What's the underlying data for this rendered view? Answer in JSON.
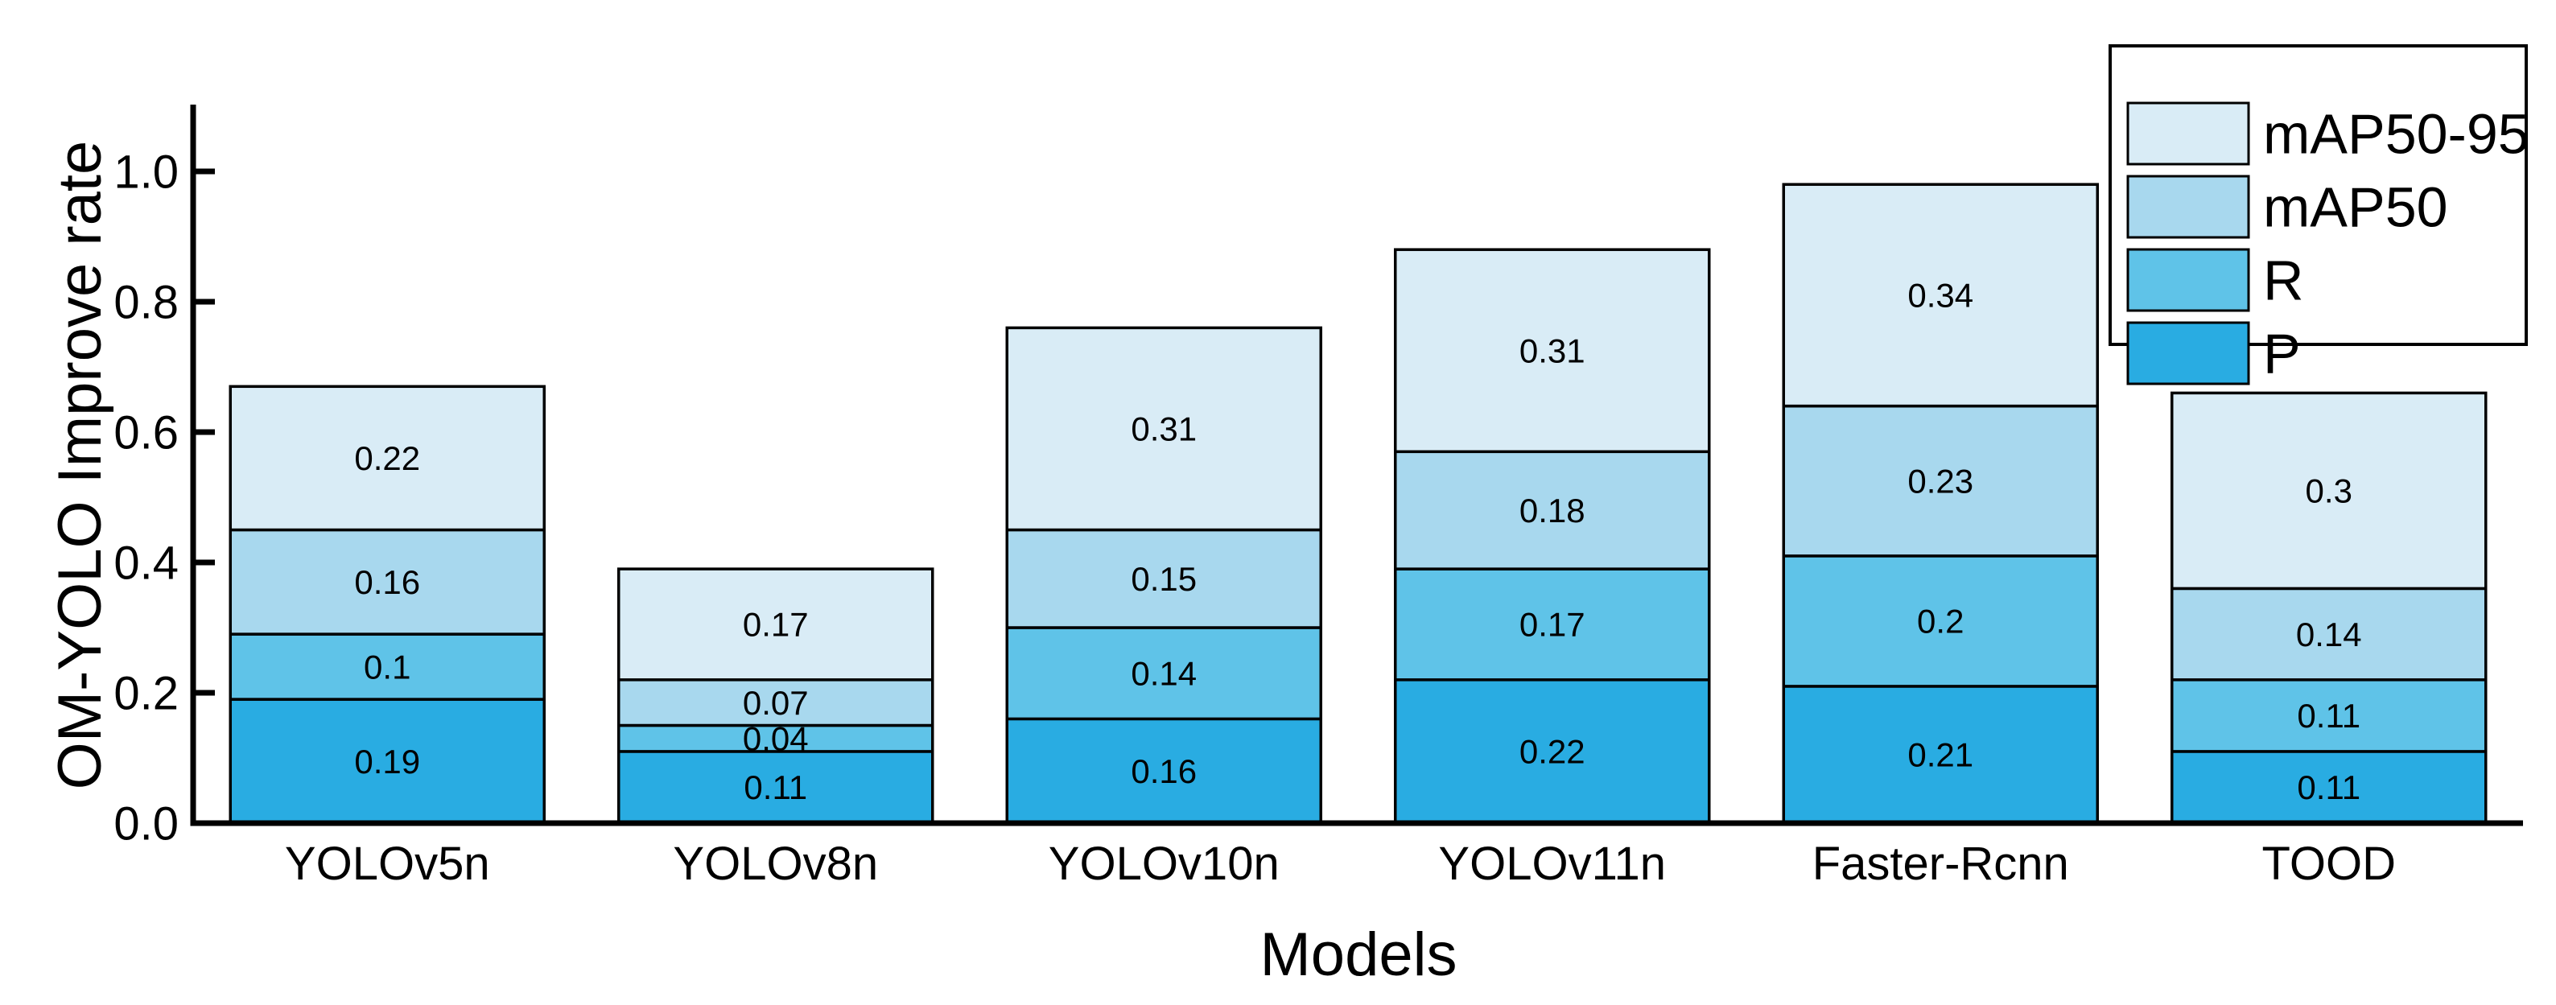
{
  "chart_data": {
    "type": "bar",
    "stacked": true,
    "title": "",
    "xlabel": "Models",
    "ylabel": "OM-YOLO Improve rate",
    "categories": [
      "YOLOv5n",
      "YOLOv8n",
      "YOLOv10n",
      "YOLOv11n",
      "Faster-Rcnn",
      "TOOD"
    ],
    "series": [
      {
        "name": "P",
        "color": "#29ACE2",
        "values": [
          0.19,
          0.11,
          0.16,
          0.22,
          0.21,
          0.11
        ]
      },
      {
        "name": "R",
        "color": "#5FC3E8",
        "values": [
          0.1,
          0.04,
          0.14,
          0.17,
          0.2,
          0.11
        ]
      },
      {
        "name": "mAP50",
        "color": "#A8D8EE",
        "values": [
          0.16,
          0.07,
          0.15,
          0.18,
          0.23,
          0.14
        ]
      },
      {
        "name": "mAP50-95",
        "color": "#D9ECF6",
        "values": [
          0.22,
          0.17,
          0.31,
          0.31,
          0.34,
          0.3
        ]
      }
    ],
    "bar_labels_visible": true,
    "ylim": [
      0,
      1.105
    ],
    "yticks": [
      0,
      0.2,
      0.4,
      0.6,
      0.8,
      1.0
    ],
    "ytick_labels": [
      "0.0",
      "0.2",
      "0.4",
      "0.6",
      "0.8",
      "1.0"
    ],
    "grid": false,
    "axis_color": "#000000",
    "background_color": "#FFFFFF",
    "legend": {
      "position": "upper right",
      "entries": [
        "mAP50-95",
        "mAP50",
        "R",
        "P"
      ]
    }
  }
}
